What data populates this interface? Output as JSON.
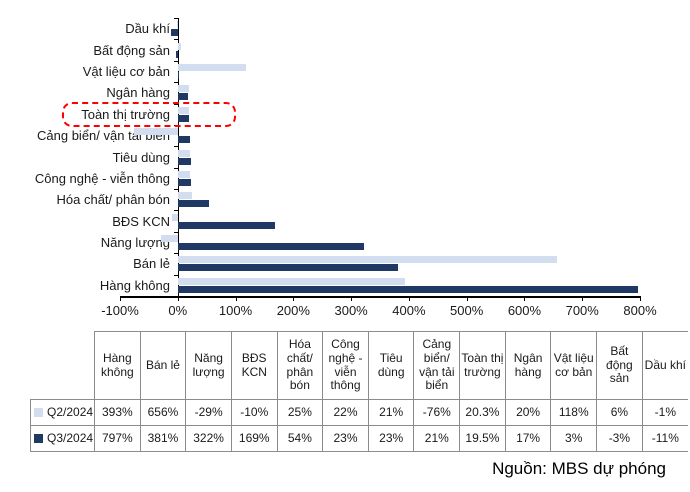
{
  "chart_data": {
    "type": "bar",
    "orientation": "horizontal",
    "title": "",
    "xlabel": "",
    "ylabel": "",
    "categories": [
      "Dầu khí",
      "Bất động sản",
      "Vật liệu cơ bản",
      "Ngân hàng",
      "Toàn thị trường",
      "Cảng biển/ vận tải biển",
      "Tiêu dùng",
      "Công nghệ - viễn thông",
      "Hóa chất/ phân bón",
      "BĐS KCN",
      "Năng lượng",
      "Bán lẻ",
      "Hàng không"
    ],
    "series": [
      {
        "name": "Q2/2024",
        "color": "#D3DDF0",
        "values": [
          -1,
          6,
          118,
          20,
          20.3,
          -76,
          21,
          22,
          25,
          -10,
          -29,
          656,
          393
        ]
      },
      {
        "name": "Q3/2024",
        "color": "#1F3864",
        "values": [
          -11,
          -3,
          3,
          17,
          19.5,
          21,
          23,
          23,
          54,
          169,
          322,
          381,
          797
        ]
      }
    ],
    "xlim": [
      -100,
      800
    ],
    "x_ticks": [
      -100,
      0,
      100,
      200,
      300,
      400,
      500,
      600,
      700,
      800
    ],
    "x_tick_suffix": "%",
    "grid": false,
    "legend_position": "table-left",
    "highlight_category": "Toàn thị trường",
    "highlight_color": "#FF0000",
    "axis_color": "#000000"
  },
  "table": {
    "columns": [
      "Hàng không",
      "Bán lẻ",
      "Năng lượng",
      "BĐS KCN",
      "Hóa chất/ phân bón",
      "Công nghệ - viễn thông",
      "Tiêu dùng",
      "Cảng biển/ vận tải biển",
      "Toàn thị trường",
      "Ngân hàng",
      "Vật liệu cơ bản",
      "Bất động sản",
      "Dầu khí"
    ],
    "rows": [
      {
        "label": "Q2/2024",
        "swatch_color": "#D3DDF0",
        "values": [
          "393%",
          "656%",
          "-29%",
          "-10%",
          "25%",
          "22%",
          "21%",
          "-76%",
          "20.3%",
          "20%",
          "118%",
          "6%",
          "-1%"
        ]
      },
      {
        "label": "Q3/2024",
        "swatch_color": "#1F3864",
        "values": [
          "797%",
          "381%",
          "322%",
          "169%",
          "54%",
          "23%",
          "23%",
          "21%",
          "19.5%",
          "17%",
          "3%",
          "-3%",
          "-11%"
        ]
      }
    ]
  },
  "source_note": "Nguồn: MBS dự phóng"
}
